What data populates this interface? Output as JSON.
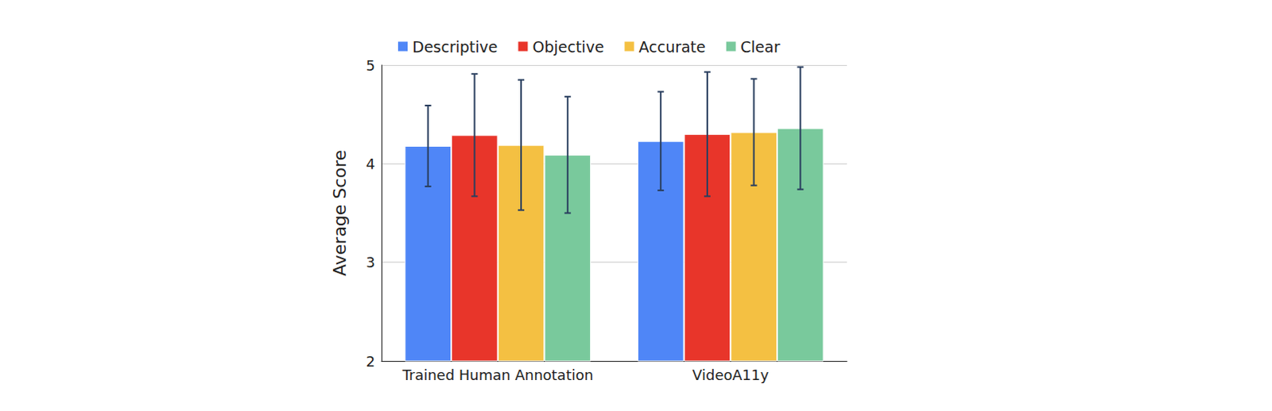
{
  "chart_data": {
    "type": "bar",
    "categories": [
      "Trained Human Annotation",
      "VideoA11y"
    ],
    "y_label": "Average Score",
    "ylim": [
      2,
      5
    ],
    "yticks": [
      2,
      3,
      4,
      5
    ],
    "grid": true,
    "legend": "top",
    "series": [
      {
        "name": "Descriptive",
        "color": "#4f86f7",
        "values": [
          4.18,
          4.23
        ],
        "errors": [
          0.41,
          0.5
        ]
      },
      {
        "name": "Objective",
        "color": "#e8352a",
        "values": [
          4.29,
          4.3
        ],
        "errors": [
          0.62,
          0.63
        ]
      },
      {
        "name": "Accurate",
        "color": "#f4c042",
        "values": [
          4.19,
          4.32
        ],
        "errors": [
          0.66,
          0.54
        ]
      },
      {
        "name": "Clear",
        "color": "#79c99c",
        "values": [
          4.09,
          4.36
        ],
        "errors": [
          0.59,
          0.62
        ]
      }
    ]
  }
}
